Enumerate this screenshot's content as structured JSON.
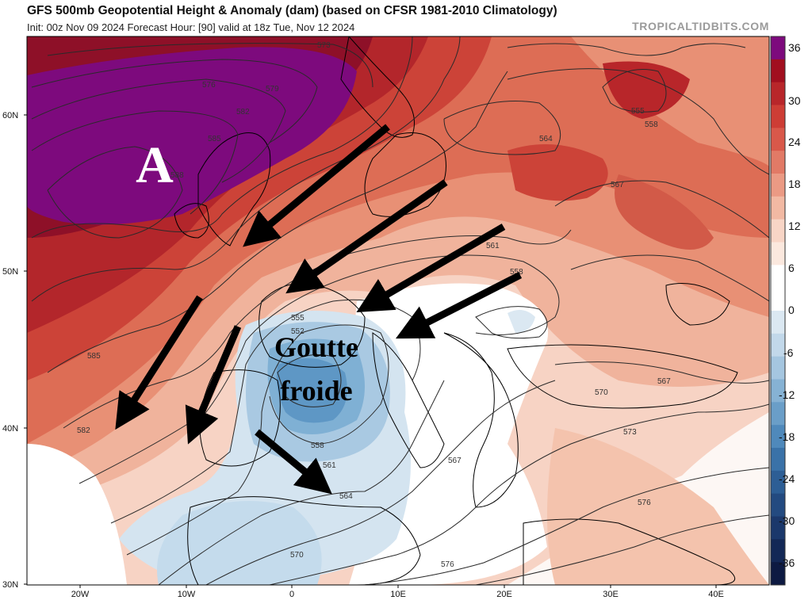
{
  "header": {
    "title": "GFS 500mb Geopotential Height & Anomaly (dam) (based on CFSR 1981-2010 Climatology)",
    "subtitle": "Init: 00z Nov 09 2024   Forecast Hour: [90]   valid at 18z Tue, Nov 12 2024",
    "brand": "TROPICALTIDBITS.COM"
  },
  "map": {
    "lat_labels": [
      "60N",
      "50N",
      "40N",
      "30N"
    ],
    "lon_labels": [
      "20W",
      "10W",
      "0",
      "10E",
      "20E",
      "30E",
      "40E"
    ],
    "contour_labels": [
      "573",
      "576",
      "579",
      "582",
      "585",
      "588",
      "582",
      "585",
      "555",
      "558",
      "564",
      "567",
      "561",
      "558",
      "555",
      "552",
      "558",
      "561",
      "564",
      "567",
      "570",
      "567",
      "573",
      "576",
      "570",
      "576"
    ],
    "annotations": {
      "high": "A",
      "low_line1": "Goutte",
      "low_line2": "froide"
    }
  },
  "colorbar": {
    "ticks": [
      "36",
      "30",
      "24",
      "18",
      "12",
      "6",
      "0",
      "-6",
      "-12",
      "-18",
      "-24",
      "-30",
      "-36"
    ],
    "colors": [
      "#7d0a7d",
      "#a10f1f",
      "#b8262a",
      "#cd3d35",
      "#d9584a",
      "#e27a66",
      "#eb9a84",
      "#f2b9a3",
      "#f8d5c6",
      "#fbe8de",
      "#ffffff",
      "#ffffff",
      "#dbe8f2",
      "#c2d8ea",
      "#a5c6e0",
      "#86b2d4",
      "#6a9ec8",
      "#4f89bb",
      "#3a72a8",
      "#2d5e95",
      "#234a80",
      "#1b386b",
      "#132856",
      "#0d1a42"
    ]
  }
}
